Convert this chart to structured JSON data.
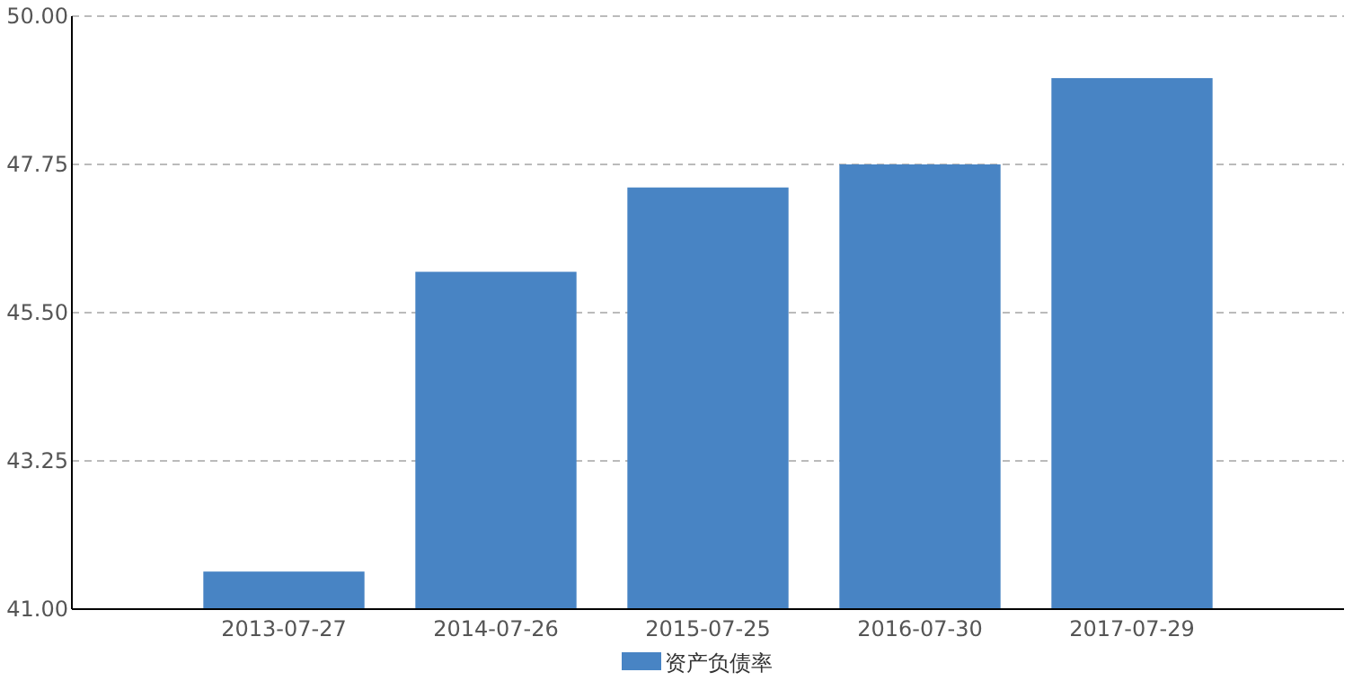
{
  "chart_data": {
    "type": "bar",
    "categories": [
      "2013-07-27",
      "2014-07-26",
      "2015-07-25",
      "2016-07-30",
      "2017-07-29"
    ],
    "series": [
      {
        "name": "资产负债率",
        "color": "#4884c4",
        "values": [
          41.57,
          46.12,
          47.4,
          47.75,
          49.06
        ]
      }
    ],
    "ylim": [
      41,
      50
    ],
    "yticks": [
      {
        "value": 41,
        "label": "41.00"
      },
      {
        "value": 43.25,
        "label": "43.25"
      },
      {
        "value": 45.5,
        "label": "45.50"
      },
      {
        "value": 47.75,
        "label": "47.75"
      },
      {
        "value": 50,
        "label": "50.00"
      }
    ],
    "grid": "y",
    "legend": "bottom"
  }
}
